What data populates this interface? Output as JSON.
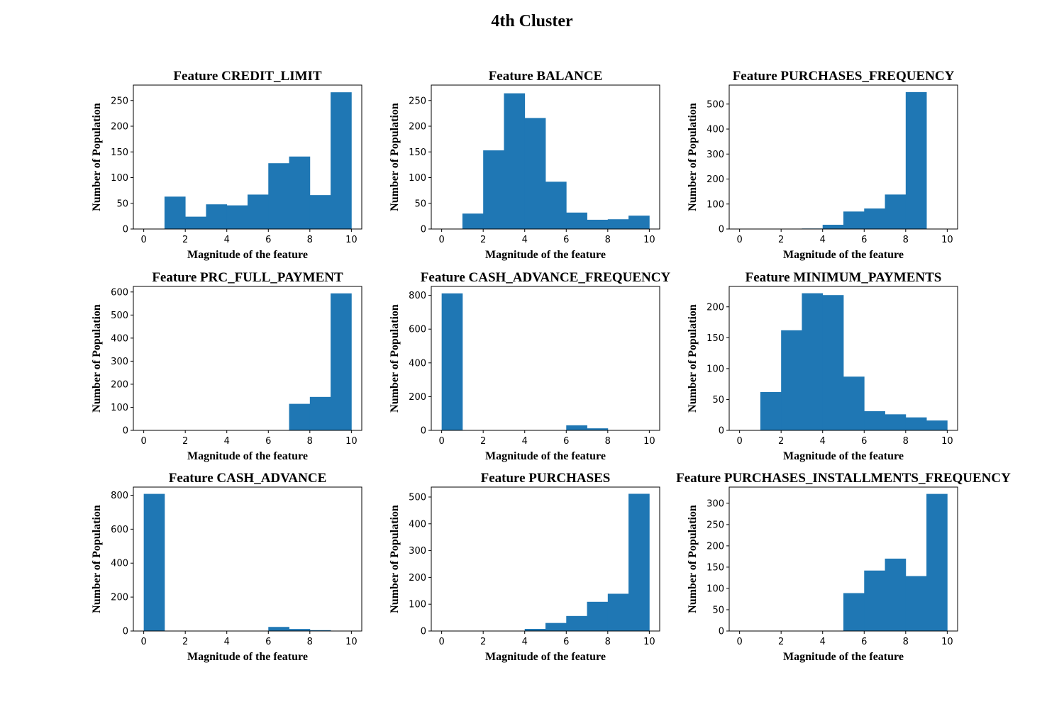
{
  "figure": {
    "title": "4th Cluster"
  },
  "colors": {
    "bar": "#1f77b4",
    "axis": "#000000",
    "background": "#ffffff"
  },
  "chart_data": [
    {
      "type": "bar",
      "title": "Feature CREDIT_LIMIT",
      "xlabel": "Magnitude of the feature",
      "ylabel": "Number of Population",
      "bin_edges": [
        1,
        2,
        3,
        4,
        5,
        6,
        7,
        8,
        9,
        10
      ],
      "values": [
        63,
        24,
        48,
        46,
        67,
        128,
        141,
        66,
        266
      ],
      "xlim": [
        -0.5,
        10.5
      ],
      "ylim": [
        0,
        280
      ],
      "xticks": [
        0,
        2,
        4,
        6,
        8,
        10
      ],
      "yticks": [
        0,
        50,
        100,
        150,
        200,
        250
      ]
    },
    {
      "type": "bar",
      "title": "Feature BALANCE",
      "xlabel": "Magnitude of the feature",
      "ylabel": "Number of Population",
      "bin_edges": [
        1,
        2,
        3,
        4,
        5,
        6,
        7,
        8,
        9,
        10
      ],
      "values": [
        30,
        153,
        264,
        216,
        92,
        32,
        18,
        19,
        26
      ],
      "xlim": [
        -0.5,
        10.5
      ],
      "ylim": [
        0,
        280
      ],
      "xticks": [
        0,
        2,
        4,
        6,
        8,
        10
      ],
      "yticks": [
        0,
        50,
        100,
        150,
        200,
        250
      ]
    },
    {
      "type": "bar",
      "title": "Feature PURCHASES_FREQUENCY",
      "xlabel": "Magnitude of the feature",
      "ylabel": "Number of Population",
      "bin_edges": [
        0,
        1,
        2,
        3,
        4,
        5,
        6,
        7,
        8,
        9
      ],
      "values": [
        0,
        0,
        0,
        2,
        17,
        70,
        82,
        138,
        548
      ],
      "xlim": [
        -0.5,
        10.5
      ],
      "ylim": [
        0,
        576
      ],
      "xticks": [
        0,
        2,
        4,
        6,
        8,
        10
      ],
      "yticks": [
        0,
        100,
        200,
        300,
        400,
        500
      ]
    },
    {
      "type": "bar",
      "title": "Feature PRC_FULL_PAYMENT",
      "xlabel": "Magnitude of the feature",
      "ylabel": "Number of Population",
      "bin_edges": [
        0,
        1,
        2,
        3,
        4,
        5,
        6,
        7,
        8,
        9,
        10
      ],
      "values": [
        0,
        0,
        0,
        0,
        0,
        0,
        0,
        115,
        145,
        594
      ],
      "xlim": [
        -0.5,
        10.5
      ],
      "ylim": [
        0,
        624
      ],
      "xticks": [
        0,
        2,
        4,
        6,
        8,
        10
      ],
      "yticks": [
        0,
        100,
        200,
        300,
        400,
        500,
        600
      ]
    },
    {
      "type": "bar",
      "title": "Feature CASH_ADVANCE_FREQUENCY",
      "xlabel": "Magnitude of the feature",
      "ylabel": "Number of Population",
      "bin_edges": [
        0,
        1,
        2,
        3,
        4,
        5,
        6,
        7,
        8,
        9,
        10
      ],
      "values": [
        812,
        0,
        0,
        0,
        0,
        0,
        30,
        12,
        0,
        0
      ],
      "xlim": [
        -0.5,
        10.5
      ],
      "ylim": [
        0,
        853
      ],
      "xticks": [
        0,
        2,
        4,
        6,
        8,
        10
      ],
      "yticks": [
        0,
        200,
        400,
        600,
        800
      ]
    },
    {
      "type": "bar",
      "title": "Feature MINIMUM_PAYMENTS",
      "xlabel": "Magnitude of the feature",
      "ylabel": "Number of Population",
      "bin_edges": [
        1,
        2,
        3,
        4,
        5,
        6,
        7,
        8,
        9,
        10
      ],
      "values": [
        62,
        162,
        222,
        219,
        87,
        31,
        26,
        21,
        16
      ],
      "xlim": [
        -0.5,
        10.5
      ],
      "ylim": [
        0,
        233
      ],
      "xticks": [
        0,
        2,
        4,
        6,
        8,
        10
      ],
      "yticks": [
        0,
        50,
        100,
        150,
        200
      ]
    },
    {
      "type": "bar",
      "title": "Feature CASH_ADVANCE",
      "xlabel": "Magnitude of the feature",
      "ylabel": "Number of Population",
      "bin_edges": [
        0,
        1,
        2,
        3,
        4,
        5,
        6,
        7,
        8,
        9,
        10
      ],
      "values": [
        808,
        0,
        0,
        0,
        0,
        0,
        24,
        12,
        5,
        0
      ],
      "xlim": [
        -0.5,
        10.5
      ],
      "ylim": [
        0,
        848
      ],
      "xticks": [
        0,
        2,
        4,
        6,
        8,
        10
      ],
      "yticks": [
        0,
        200,
        400,
        600,
        800
      ]
    },
    {
      "type": "bar",
      "title": "Feature PURCHASES",
      "xlabel": "Magnitude of the feature",
      "ylabel": "Number of Population",
      "bin_edges": [
        4,
        5,
        6,
        7,
        8,
        9,
        10
      ],
      "values": [
        8,
        30,
        56,
        109,
        139,
        512
      ],
      "xlim": [
        -0.5,
        10.5
      ],
      "ylim": [
        0,
        537
      ],
      "xticks": [
        0,
        2,
        4,
        6,
        8,
        10
      ],
      "yticks": [
        0,
        100,
        200,
        300,
        400,
        500
      ]
    },
    {
      "type": "bar",
      "title": "Feature PURCHASES_INSTALLMENTS_FREQUENCY",
      "xlabel": "Magnitude of the feature",
      "ylabel": "Number of Population",
      "bin_edges": [
        0,
        1,
        2,
        3,
        4,
        5,
        6,
        7,
        8,
        9,
        10
      ],
      "values": [
        0,
        0,
        0,
        0,
        0,
        89,
        142,
        170,
        129,
        322
      ],
      "xlim": [
        -0.5,
        10.5
      ],
      "ylim": [
        0,
        338
      ],
      "xticks": [
        0,
        2,
        4,
        6,
        8,
        10
      ],
      "yticks": [
        0,
        50,
        100,
        150,
        200,
        250,
        300
      ]
    }
  ]
}
